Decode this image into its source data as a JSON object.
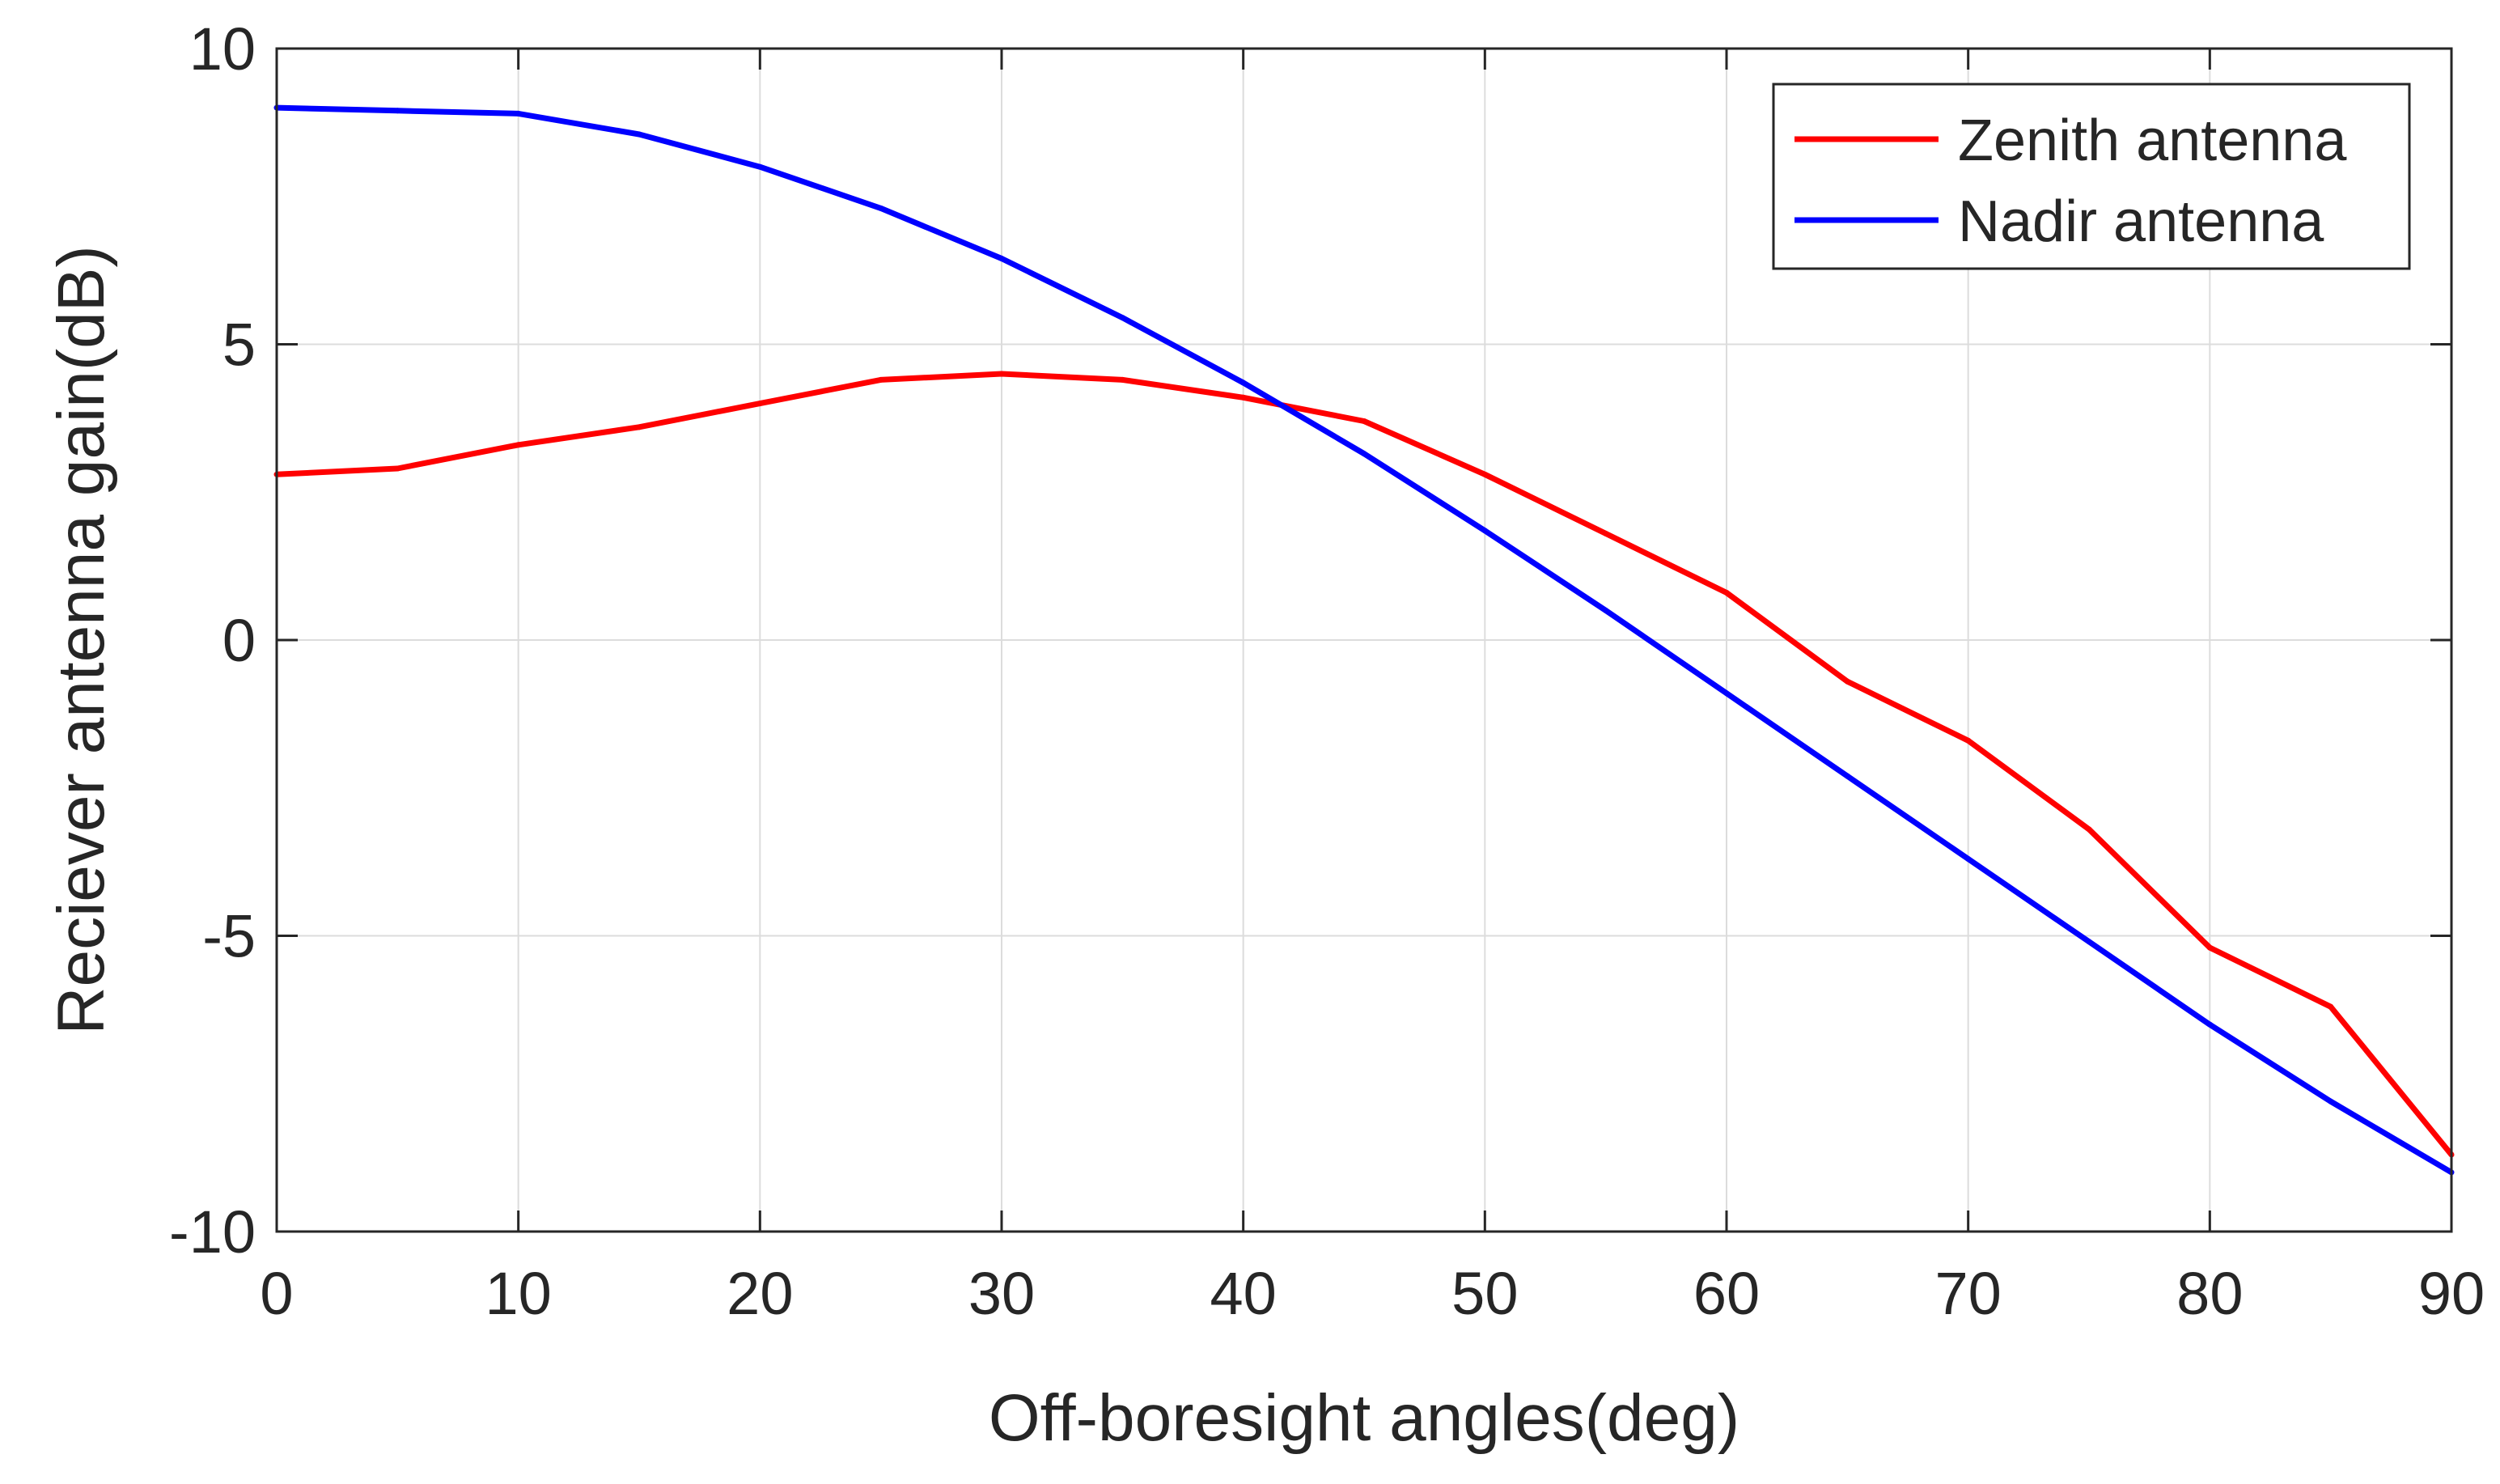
{
  "chart_data": {
    "type": "line",
    "title": "",
    "xlabel": "Off-boresight angles(deg)",
    "ylabel": "Reciever antenna gain(dB)",
    "xlim": [
      0,
      90
    ],
    "ylim": [
      -10,
      10
    ],
    "xticks": [
      0,
      10,
      20,
      30,
      40,
      50,
      60,
      70,
      80,
      90
    ],
    "yticks": [
      -10,
      -5,
      0,
      5,
      10
    ],
    "xtick_labels": [
      "0",
      "10",
      "20",
      "30",
      "40",
      "50",
      "60",
      "70",
      "80",
      "90"
    ],
    "ytick_labels": [
      "-10",
      "-5",
      "0",
      "5",
      "10"
    ],
    "grid": true,
    "legend_position": "top-right",
    "x": [
      0,
      5,
      10,
      15,
      20,
      25,
      30,
      35,
      40,
      45,
      50,
      55,
      60,
      65,
      70,
      75,
      80,
      85,
      90
    ],
    "series": [
      {
        "name": "Zenith antenna",
        "color": "#ff0000",
        "values": [
          2.8,
          2.9,
          3.3,
          3.6,
          4.0,
          4.4,
          4.5,
          4.4,
          4.1,
          3.7,
          2.8,
          1.8,
          0.8,
          -0.7,
          -1.7,
          -3.2,
          -5.2,
          -6.2,
          -8.7
        ]
      },
      {
        "name": "Nadir antenna",
        "color": "#0000ff",
        "values": [
          9.0,
          8.95,
          8.9,
          8.55,
          8.0,
          7.3,
          6.45,
          5.45,
          4.35,
          3.15,
          1.85,
          0.5,
          -0.9,
          -2.3,
          -3.7,
          -5.1,
          -6.5,
          -7.8,
          -9.0
        ]
      }
    ]
  }
}
